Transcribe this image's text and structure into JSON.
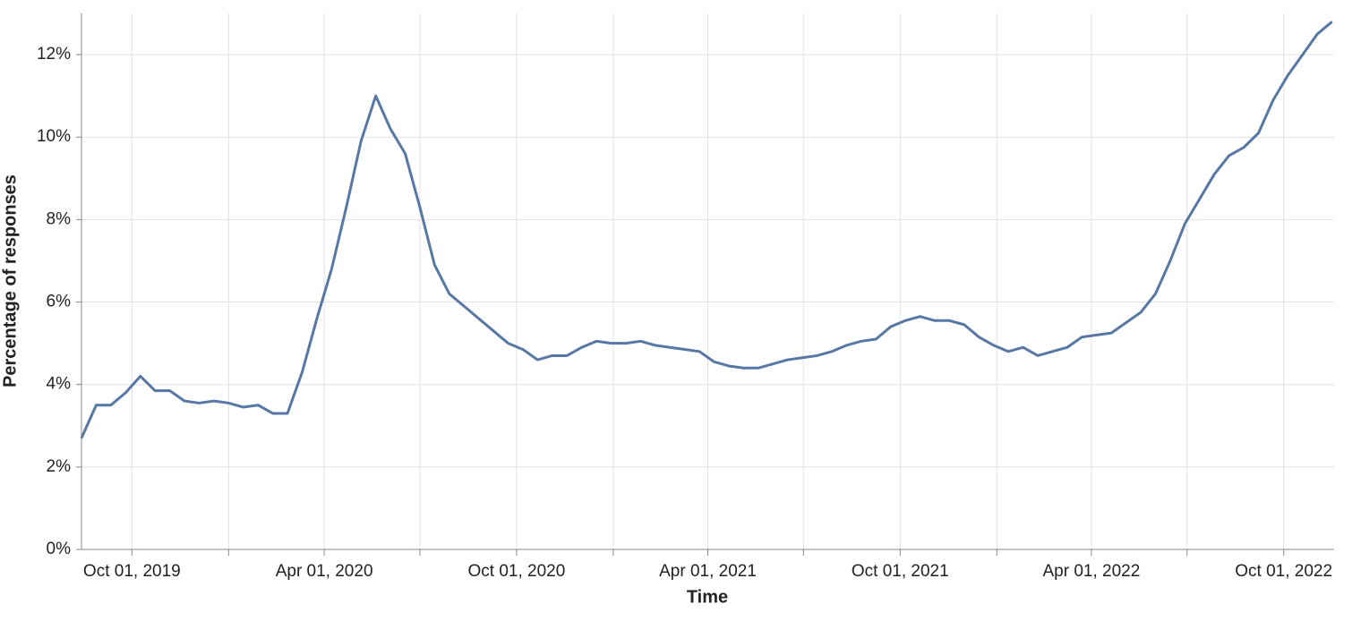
{
  "chart_data": {
    "type": "line",
    "x_label": "Time",
    "y_label": "Percentage of responses",
    "xlim": [
      "2019-08-14",
      "2022-11-18"
    ],
    "ylim": [
      0,
      13
    ],
    "xticks": [
      {
        "value": "2019-10-01",
        "label": "Oct 01, 2019"
      },
      {
        "value": "2020-04-01",
        "label": "Apr 01, 2020"
      },
      {
        "value": "2020-10-01",
        "label": "Oct 01, 2020"
      },
      {
        "value": "2021-04-01",
        "label": "Apr 01, 2021"
      },
      {
        "value": "2021-10-01",
        "label": "Oct 01, 2021"
      },
      {
        "value": "2022-04-01",
        "label": "Apr 01, 2022"
      },
      {
        "value": "2022-10-01",
        "label": "Oct 01, 2022"
      }
    ],
    "xticks_minor": [
      "2020-01-01",
      "2020-07-01",
      "2021-01-01",
      "2021-07-01",
      "2022-01-01",
      "2022-07-01"
    ],
    "yticks": [
      {
        "value": 0,
        "label": "0%"
      },
      {
        "value": 2,
        "label": "2%"
      },
      {
        "value": 4,
        "label": "4%"
      },
      {
        "value": 6,
        "label": "6%"
      },
      {
        "value": 8,
        "label": "8%"
      },
      {
        "value": 10,
        "label": "10%"
      },
      {
        "value": 12,
        "label": "12%"
      }
    ],
    "grid": true,
    "x": [
      "2019-08-14",
      "2019-08-28",
      "2019-09-11",
      "2019-09-25",
      "2019-10-09",
      "2019-10-23",
      "2019-11-06",
      "2019-11-20",
      "2019-12-04",
      "2019-12-18",
      "2020-01-01",
      "2020-01-15",
      "2020-01-29",
      "2020-02-12",
      "2020-02-26",
      "2020-03-11",
      "2020-03-25",
      "2020-04-08",
      "2020-04-22",
      "2020-05-06",
      "2020-05-20",
      "2020-06-03",
      "2020-06-17",
      "2020-07-01",
      "2020-07-15",
      "2020-07-29",
      "2020-08-12",
      "2020-08-26",
      "2020-09-09",
      "2020-09-23",
      "2020-10-07",
      "2020-10-21",
      "2020-11-04",
      "2020-11-18",
      "2020-12-02",
      "2020-12-16",
      "2020-12-30",
      "2021-01-13",
      "2021-01-27",
      "2021-02-10",
      "2021-02-24",
      "2021-03-10",
      "2021-03-24",
      "2021-04-07",
      "2021-04-21",
      "2021-05-05",
      "2021-05-19",
      "2021-06-02",
      "2021-06-16",
      "2021-06-30",
      "2021-07-14",
      "2021-07-28",
      "2021-08-11",
      "2021-08-25",
      "2021-09-08",
      "2021-09-22",
      "2021-10-06",
      "2021-10-20",
      "2021-11-03",
      "2021-11-17",
      "2021-12-01",
      "2021-12-15",
      "2021-12-29",
      "2022-01-12",
      "2022-01-26",
      "2022-02-09",
      "2022-02-23",
      "2022-03-09",
      "2022-03-23",
      "2022-04-06",
      "2022-04-20",
      "2022-05-04",
      "2022-05-18",
      "2022-06-01",
      "2022-06-15",
      "2022-06-29",
      "2022-07-13",
      "2022-07-27",
      "2022-08-10",
      "2022-08-24",
      "2022-09-07",
      "2022-09-21",
      "2022-10-05",
      "2022-10-19",
      "2022-11-02",
      "2022-11-16"
    ],
    "series": [
      {
        "color": "#5778a4",
        "values": [
          2.7,
          3.5,
          3.5,
          3.8,
          4.2,
          3.85,
          3.85,
          3.6,
          3.55,
          3.6,
          3.55,
          3.45,
          3.5,
          3.3,
          3.3,
          4.3,
          5.6,
          6.8,
          8.3,
          9.9,
          11.0,
          10.2,
          9.6,
          8.3,
          6.9,
          6.2,
          5.9,
          5.6,
          5.3,
          5.0,
          4.85,
          4.6,
          4.7,
          4.7,
          4.9,
          5.05,
          5.0,
          5.0,
          5.05,
          4.95,
          4.9,
          4.85,
          4.8,
          4.55,
          4.45,
          4.4,
          4.4,
          4.5,
          4.6,
          4.65,
          4.7,
          4.8,
          4.95,
          5.05,
          5.1,
          5.4,
          5.55,
          5.65,
          5.55,
          5.55,
          5.45,
          5.15,
          4.95,
          4.8,
          4.9,
          4.7,
          4.8,
          4.9,
          5.15,
          5.2,
          5.25,
          5.5,
          5.75,
          6.2,
          7.0,
          7.9,
          8.5,
          9.1,
          9.55,
          9.75,
          10.1,
          10.9,
          11.5,
          12.0,
          12.5,
          12.8
        ]
      }
    ]
  }
}
